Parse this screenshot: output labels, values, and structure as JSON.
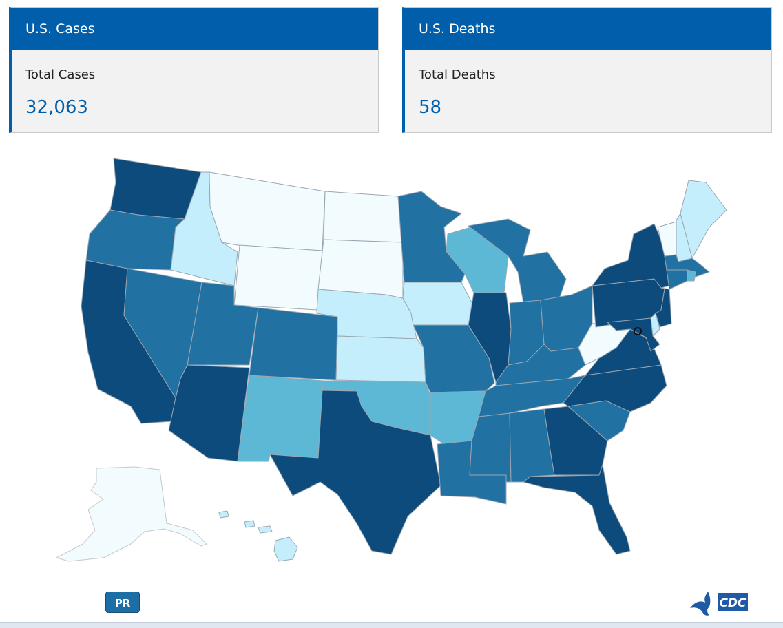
{
  "cases_card": {
    "title": "U.S. Cases",
    "label": "Total Cases",
    "value": "32,063"
  },
  "deaths_card": {
    "title": "U.S. Deaths",
    "label": "Total Deaths",
    "value": "58"
  },
  "pr_button": {
    "label": "PR"
  },
  "logo": {
    "text": "CDC"
  },
  "colors": {
    "header": "#005eaa",
    "level_1": "#f2fbfe",
    "level_2": "#c4eefb",
    "level_3": "#5db8d6",
    "level_4": "#2171a3",
    "level_5": "#0c4b7c",
    "border": "#9aa7b2"
  },
  "map_levels": {
    "WA": 5,
    "OR": 4,
    "CA": 5,
    "NV": 4,
    "ID": 2,
    "MT": 1,
    "WY": 1,
    "UT": 4,
    "AZ": 5,
    "CO": 4,
    "NM": 3,
    "ND": 1,
    "SD": 1,
    "NE": 2,
    "KS": 2,
    "OK": 3,
    "TX": 5,
    "MN": 4,
    "IA": 2,
    "MO": 4,
    "AR": 3,
    "LA": 4,
    "WI": 3,
    "IL": 5,
    "MS": 4,
    "MI": 4,
    "IN": 4,
    "OH": 4,
    "KY": 4,
    "TN": 4,
    "AL": 4,
    "GA": 5,
    "FL": 5,
    "SC": 4,
    "NC": 5,
    "VA": 5,
    "WV": 1,
    "PA": 5,
    "NY": 5,
    "NJ": 5,
    "DE": 2,
    "MD": 5,
    "ME": 2,
    "NH": 2,
    "VT": 1,
    "MA": 4,
    "CT": 4,
    "RI": 3,
    "AK": 1,
    "HI": 2
  }
}
